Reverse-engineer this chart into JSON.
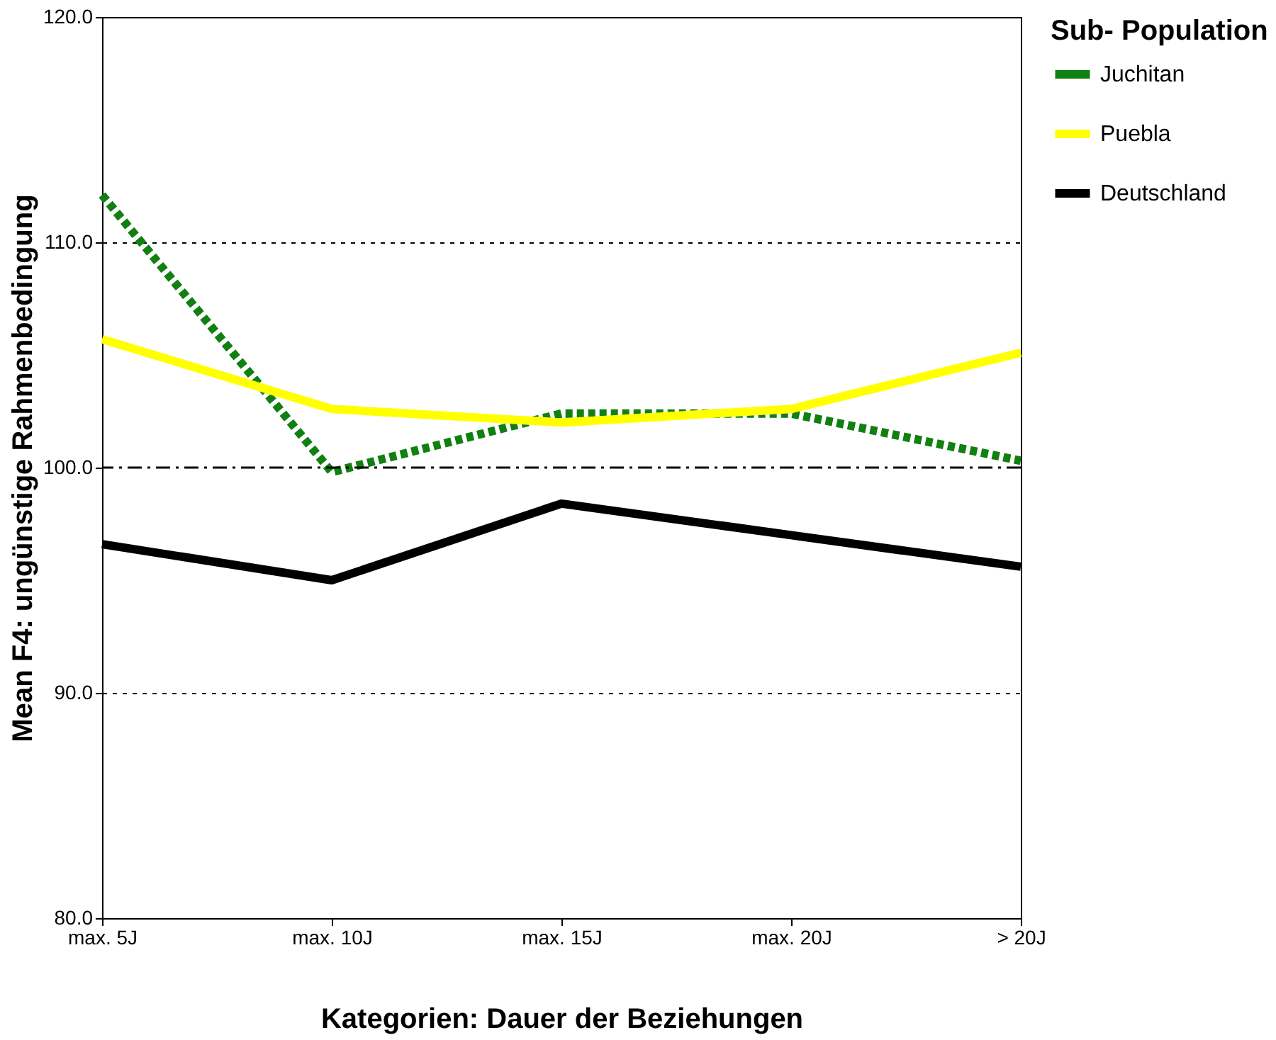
{
  "chart_data": {
    "type": "line",
    "xlabel": "Kategorien: Dauer der Beziehungen",
    "ylabel": "Mean F4:      ungünstige Rahmenbedingung",
    "legend_title": "Sub- Population",
    "categories": [
      "max. 5J",
      "max. 10J",
      "max. 15J",
      "max. 20J",
      "> 20J"
    ],
    "series": [
      {
        "name": "Juchitan",
        "color": "#108010",
        "line_style": "dotted",
        "values": [
          112.1,
          99.8,
          102.4,
          102.4,
          100.3
        ]
      },
      {
        "name": "Puebla",
        "color": "#ffff00",
        "line_style": "solid",
        "values": [
          105.7,
          102.6,
          102.0,
          102.6,
          105.1
        ]
      },
      {
        "name": "Deutschland",
        "color": "#000000",
        "line_style": "solid",
        "values": [
          96.6,
          95.0,
          98.4,
          97.0,
          95.6
        ]
      }
    ],
    "ylim": [
      80,
      120
    ],
    "yticks": [
      {
        "value": 80,
        "label": "80.0"
      },
      {
        "value": 90,
        "label": "90.0"
      },
      {
        "value": 100,
        "label": "100.0"
      },
      {
        "value": 110,
        "label": "110.0"
      },
      {
        "value": 120,
        "label": "120.0"
      }
    ],
    "grid": "y",
    "legend": "right",
    "marker": "none",
    "ref_lines": [
      {
        "axis": "y",
        "value": 100,
        "line_style": "dashed",
        "color": "#000000"
      }
    ]
  }
}
